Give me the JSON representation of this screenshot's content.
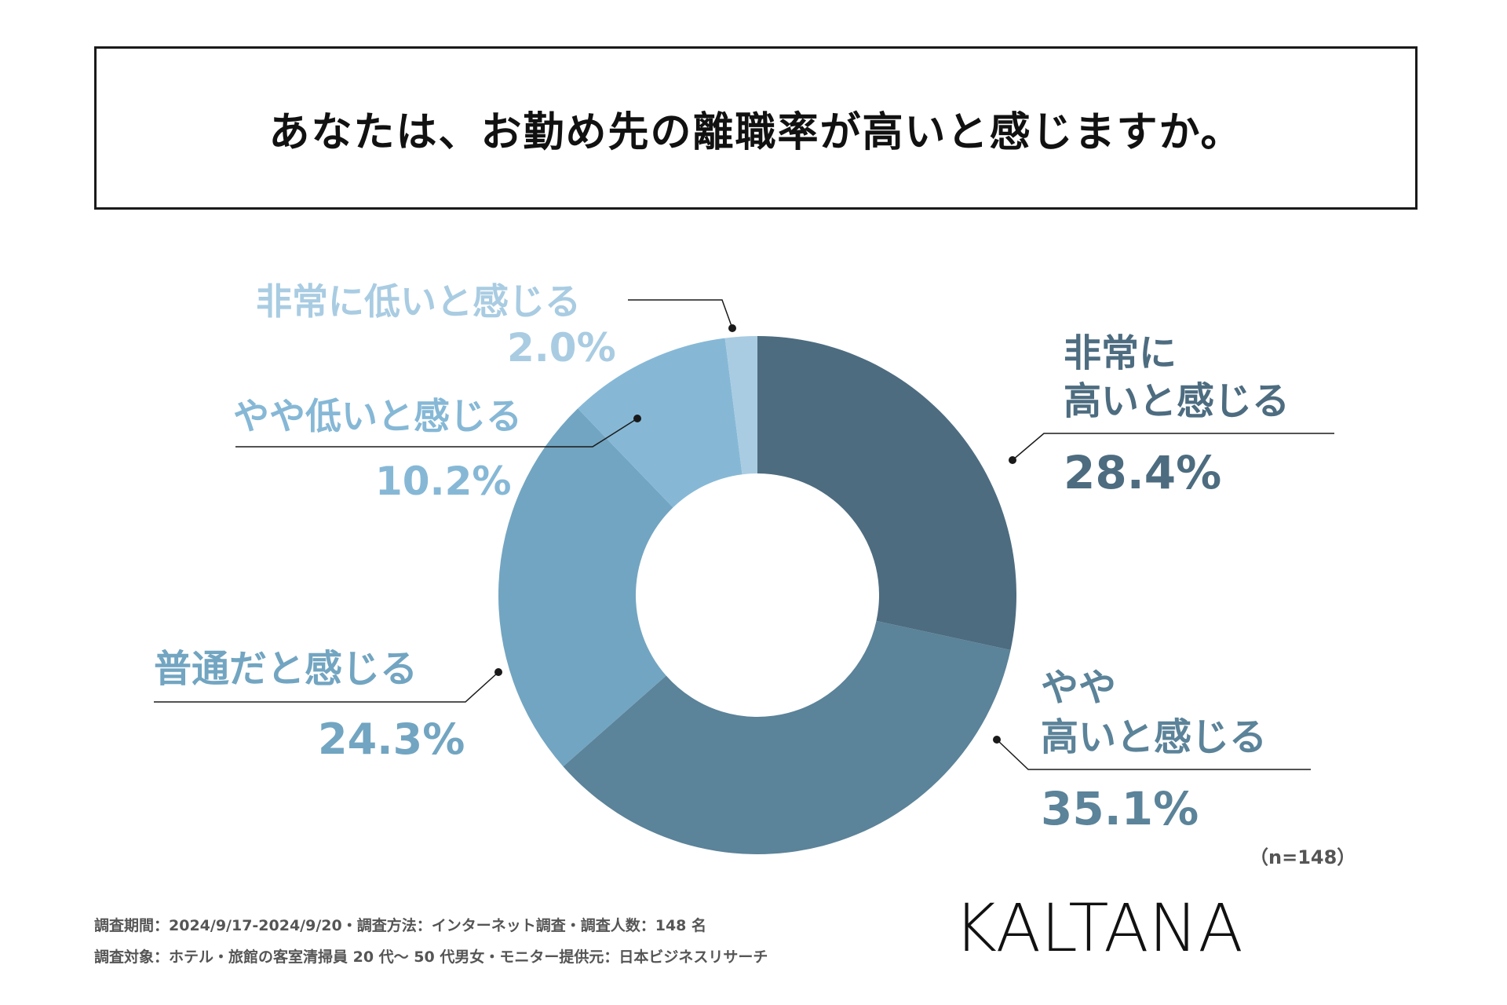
{
  "title": "あなたは、お勤め先の離職率が高いと感じますか。",
  "chart_data": {
    "type": "pie",
    "donut": true,
    "title": "あなたは、お勤め先の離職率が高いと感じますか。",
    "slices": [
      {
        "label_lines": [
          "非常に",
          "高いと感じる"
        ],
        "value": 28.4,
        "value_text": "28.4%",
        "color": "#4d6c80"
      },
      {
        "label_lines": [
          "やや",
          "高いと感じる"
        ],
        "value": 35.1,
        "value_text": "35.1%",
        "color": "#5b8399"
      },
      {
        "label_lines": [
          "普通だと感じる"
        ],
        "value": 24.3,
        "value_text": "24.3%",
        "color": "#72a5c1"
      },
      {
        "label_lines": [
          "やや低いと感じる"
        ],
        "value": 10.2,
        "value_text": "10.2%",
        "color": "#86b8d6"
      },
      {
        "label_lines": [
          "非常に低いと感じる"
        ],
        "value": 2.0,
        "value_text": "2.0%",
        "color": "#a9cce2"
      }
    ]
  },
  "sample_size": "（n=148）",
  "footer": {
    "line1": "調査期間：2024/9/17-2024/9/20・調査方法：インターネット調査・調査人数：148 名",
    "line2": "調査対象：ホテル・旅館の客室清掃員 20 代〜 50 代男女・モニター提供元：日本ビジネスリサーチ"
  },
  "logo_text": "KALTANA"
}
